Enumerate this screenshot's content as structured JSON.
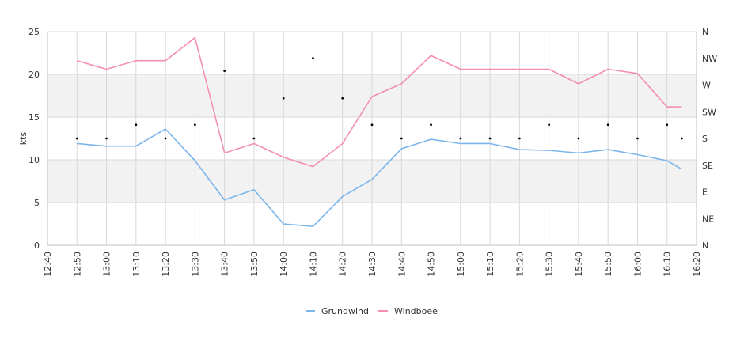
{
  "chart_data": {
    "type": "line",
    "title": "",
    "xlabel": "",
    "ylabel": "kts",
    "ylim": [
      0,
      25
    ],
    "y_ticks": [
      "0",
      "5",
      "10",
      "15",
      "20",
      "25"
    ],
    "x_ticks": [
      "12:40",
      "12:50",
      "13:00",
      "13:10",
      "13:20",
      "13:30",
      "13:40",
      "13:50",
      "14:00",
      "14:10",
      "14:20",
      "14:30",
      "14:40",
      "14:50",
      "15:00",
      "15:10",
      "15:20",
      "15:30",
      "15:40",
      "15:50",
      "16:00",
      "16:10",
      "16:20"
    ],
    "right_axis": {
      "labels": [
        "N",
        "NE",
        "E",
        "SE",
        "S",
        "SW",
        "W",
        "NW",
        "N"
      ]
    },
    "grid": true,
    "legend_position": "bottom",
    "series": [
      {
        "name": "Grundwind",
        "color": "#7cb5ec",
        "points": [
          [
            "12:50",
            11.9
          ],
          [
            "13:00",
            11.6
          ],
          [
            "13:10",
            11.6
          ],
          [
            "13:20",
            13.6
          ],
          [
            "13:30",
            9.9
          ],
          [
            "13:40",
            5.3
          ],
          [
            "13:50",
            6.5
          ],
          [
            "14:00",
            2.5
          ],
          [
            "14:10",
            2.2
          ],
          [
            "14:20",
            5.7
          ],
          [
            "14:30",
            7.7
          ],
          [
            "14:40",
            11.3
          ],
          [
            "14:50",
            12.4
          ],
          [
            "15:00",
            11.9
          ],
          [
            "15:10",
            11.9
          ],
          [
            "15:20",
            11.2
          ],
          [
            "15:30",
            11.1
          ],
          [
            "15:40",
            10.8
          ],
          [
            "15:50",
            11.2
          ],
          [
            "16:00",
            10.6
          ],
          [
            "16:10",
            9.9
          ],
          [
            "16:15",
            8.9
          ]
        ]
      },
      {
        "name": "Windboee",
        "color": "#f48fb1",
        "points": [
          [
            "12:50",
            21.6
          ],
          [
            "13:00",
            20.6
          ],
          [
            "13:10",
            21.6
          ],
          [
            "13:20",
            21.6
          ],
          [
            "13:30",
            24.3
          ],
          [
            "13:40",
            10.8
          ],
          [
            "13:50",
            11.9
          ],
          [
            "14:00",
            10.3
          ],
          [
            "14:10",
            9.2
          ],
          [
            "14:20",
            11.9
          ],
          [
            "14:30",
            17.4
          ],
          [
            "14:40",
            18.9
          ],
          [
            "14:50",
            22.2
          ],
          [
            "15:00",
            20.6
          ],
          [
            "15:10",
            20.6
          ],
          [
            "15:20",
            20.6
          ],
          [
            "15:30",
            20.6
          ],
          [
            "15:40",
            18.9
          ],
          [
            "15:50",
            20.6
          ],
          [
            "16:00",
            20.1
          ],
          [
            "16:10",
            16.2
          ],
          [
            "16:15",
            16.2
          ]
        ]
      }
    ],
    "direction_points": [
      [
        "12:50",
        12.5
      ],
      [
        "13:00",
        12.5
      ],
      [
        "13:10",
        14.1
      ],
      [
        "13:20",
        12.5
      ],
      [
        "13:30",
        14.1
      ],
      [
        "13:40",
        20.4
      ],
      [
        "13:50",
        12.5
      ],
      [
        "14:00",
        17.2
      ],
      [
        "14:10",
        21.9
      ],
      [
        "14:20",
        17.2
      ],
      [
        "14:30",
        14.1
      ],
      [
        "14:40",
        12.5
      ],
      [
        "14:50",
        14.1
      ],
      [
        "15:00",
        12.5
      ],
      [
        "15:10",
        12.5
      ],
      [
        "15:20",
        12.5
      ],
      [
        "15:30",
        14.1
      ],
      [
        "15:40",
        12.5
      ],
      [
        "15:50",
        14.1
      ],
      [
        "16:00",
        12.5
      ],
      [
        "16:10",
        14.1
      ],
      [
        "16:15",
        12.5
      ]
    ],
    "band_fill": "#f2f2f2",
    "grid_color": "#d8d8d8",
    "axis_color": "#c0c0c0",
    "direction_marker_color": "#000000"
  }
}
